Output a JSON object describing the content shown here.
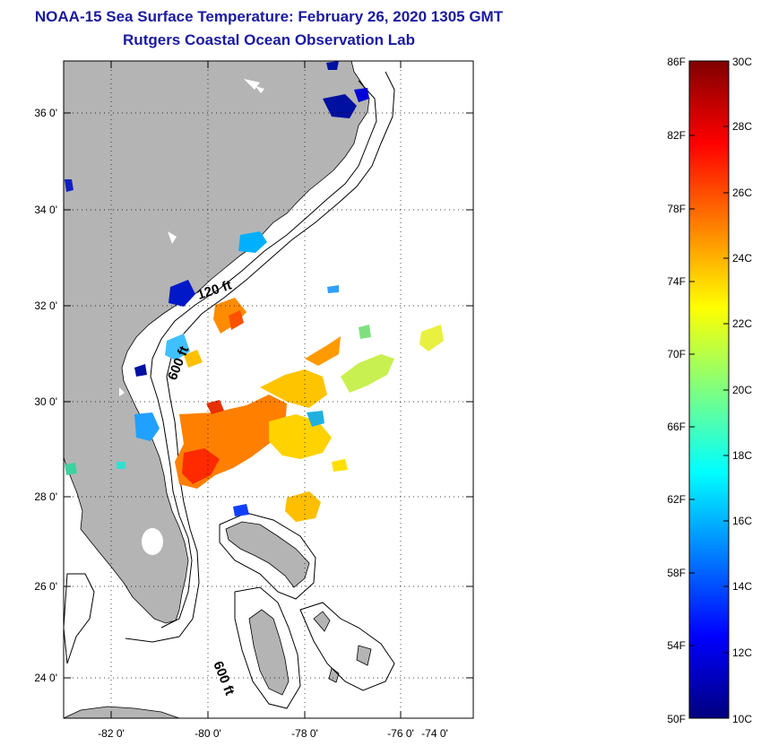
{
  "title": {
    "line1": "NOAA-15 Sea Surface Temperature:  February 26, 2020 1305 GMT",
    "line2": "Rutgers Coastal Ocean Observation Lab"
  },
  "map": {
    "lon_ticks": [
      "-82 0'",
      "-80 0'",
      "-78 0'",
      "-76 0'",
      "-74 0'"
    ],
    "lat_ticks": [
      "36 0'",
      "34 0'",
      "32 0'",
      "30 0'",
      "28 0'",
      "26 0'",
      "24 0'"
    ],
    "contour_labels": [
      "120 ft",
      "600 ft",
      "600 ft"
    ],
    "land_color": "#b4b4b4"
  },
  "colorbar": {
    "fahrenheit": [
      "86F",
      "82F",
      "78F",
      "74F",
      "70F",
      "66F",
      "62F",
      "58F",
      "54F",
      "50F"
    ],
    "celsius": [
      "30C",
      "28C",
      "26C",
      "24C",
      "22C",
      "20C",
      "18C",
      "16C",
      "14C",
      "12C",
      "10C"
    ],
    "colors": [
      "#00007f",
      "#0000ff",
      "#007fff",
      "#00ffff",
      "#7fff7f",
      "#ffff00",
      "#ff7f00",
      "#ff0000",
      "#7f0000"
    ]
  }
}
